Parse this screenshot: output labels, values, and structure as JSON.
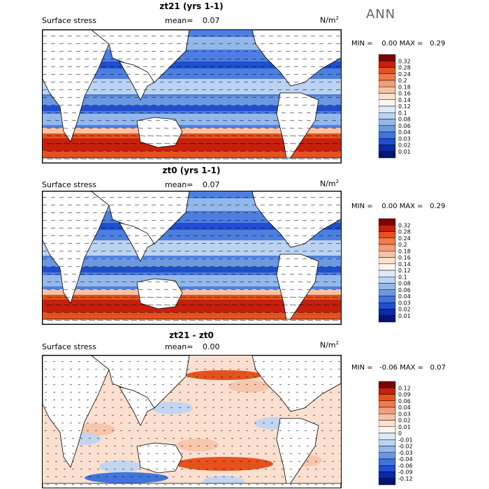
{
  "season": "ANN",
  "panels": [
    {
      "title": "zt21 (yrs 1-1)",
      "label": "Surface stress",
      "mean_label": "mean=",
      "mean_value": "0.07",
      "unit_base": "N/m",
      "unit_exp": "2",
      "min_label": "MIN =",
      "min_value": "0.00",
      "max_label": "MAX =",
      "max_value": "0.29",
      "levels": [
        "0.32",
        "0.28",
        "0.24",
        "0.2",
        "0.18",
        "0.16",
        "0.14",
        "0.12",
        "0.1",
        "0.08",
        "0.06",
        "0.04",
        "0.03",
        "0.02",
        "0.01"
      ],
      "colors": [
        "#7a0403",
        "#c81f0d",
        "#e5521e",
        "#ef7b4c",
        "#f39c7a",
        "#f8c2a6",
        "#fbe0d0",
        "#fdf4ee",
        "#dce9f8",
        "#bcd4f3",
        "#93b8ec",
        "#6a98e3",
        "#4274dc",
        "#1f4fd0",
        "#0a2aa8",
        "#041573"
      ]
    },
    {
      "title": "zt0 (yrs 1-1)",
      "label": "Surface stress",
      "mean_label": "mean=",
      "mean_value": "0.07",
      "unit_base": "N/m",
      "unit_exp": "2",
      "min_label": "MIN =",
      "min_value": "0.00",
      "max_label": "MAX =",
      "max_value": "0.29",
      "levels": [
        "0.32",
        "0.28",
        "0.24",
        "0.2",
        "0.18",
        "0.16",
        "0.14",
        "0.12",
        "0.1",
        "0.08",
        "0.06",
        "0.04",
        "0.03",
        "0.02",
        "0.01"
      ],
      "colors": [
        "#7a0403",
        "#c81f0d",
        "#e5521e",
        "#ef7b4c",
        "#f39c7a",
        "#f8c2a6",
        "#fbe0d0",
        "#fdf4ee",
        "#dce9f8",
        "#bcd4f3",
        "#93b8ec",
        "#6a98e3",
        "#4274dc",
        "#1f4fd0",
        "#0a2aa8",
        "#041573"
      ]
    },
    {
      "title": "zt21 - zt0",
      "label": "Surface stress",
      "mean_label": "mean=",
      "mean_value": "0.00",
      "unit_base": "N/m",
      "unit_exp": "2",
      "min_label": "MIN =",
      "min_value": "-0.06",
      "max_label": "MAX =",
      "max_value": "0.07",
      "levels": [
        "0.12",
        "0.09",
        "0.06",
        "0.04",
        "0.03",
        "0.02",
        "0.01",
        "0",
        "-0.01",
        "-0.02",
        "-0.03",
        "-0.04",
        "-0.06",
        "-0.09",
        "-0.12"
      ],
      "colors": [
        "#7a0403",
        "#c81f0d",
        "#e5521e",
        "#ef7b4c",
        "#f39c7a",
        "#f8c2a6",
        "#fbe0d0",
        "#fdf4ee",
        "#dce9f8",
        "#bcd4f3",
        "#93b8ec",
        "#6a98e3",
        "#4274dc",
        "#1f4fd0",
        "#0a2aa8",
        "#041573"
      ]
    }
  ],
  "chart_data": [
    {
      "type": "heatmap",
      "title": "zt21 (yrs 1-1)",
      "field": "Surface stress",
      "mean": 0.07,
      "min": 0.0,
      "max": 0.29,
      "unit": "N/m^2",
      "contour_levels": [
        0.01,
        0.02,
        0.03,
        0.04,
        0.06,
        0.08,
        0.1,
        0.12,
        0.14,
        0.16,
        0.18,
        0.2,
        0.24,
        0.28,
        0.32
      ]
    },
    {
      "type": "heatmap",
      "title": "zt0 (yrs 1-1)",
      "field": "Surface stress",
      "mean": 0.07,
      "min": 0.0,
      "max": 0.29,
      "unit": "N/m^2",
      "contour_levels": [
        0.01,
        0.02,
        0.03,
        0.04,
        0.06,
        0.08,
        0.1,
        0.12,
        0.14,
        0.16,
        0.18,
        0.2,
        0.24,
        0.28,
        0.32
      ]
    },
    {
      "type": "heatmap",
      "title": "zt21 - zt0",
      "field": "Surface stress",
      "mean": 0.0,
      "min": -0.06,
      "max": 0.07,
      "unit": "N/m^2",
      "contour_levels": [
        -0.12,
        -0.09,
        -0.06,
        -0.04,
        -0.03,
        -0.02,
        -0.01,
        0,
        0.01,
        0.02,
        0.03,
        0.04,
        0.06,
        0.09,
        0.12
      ]
    }
  ]
}
